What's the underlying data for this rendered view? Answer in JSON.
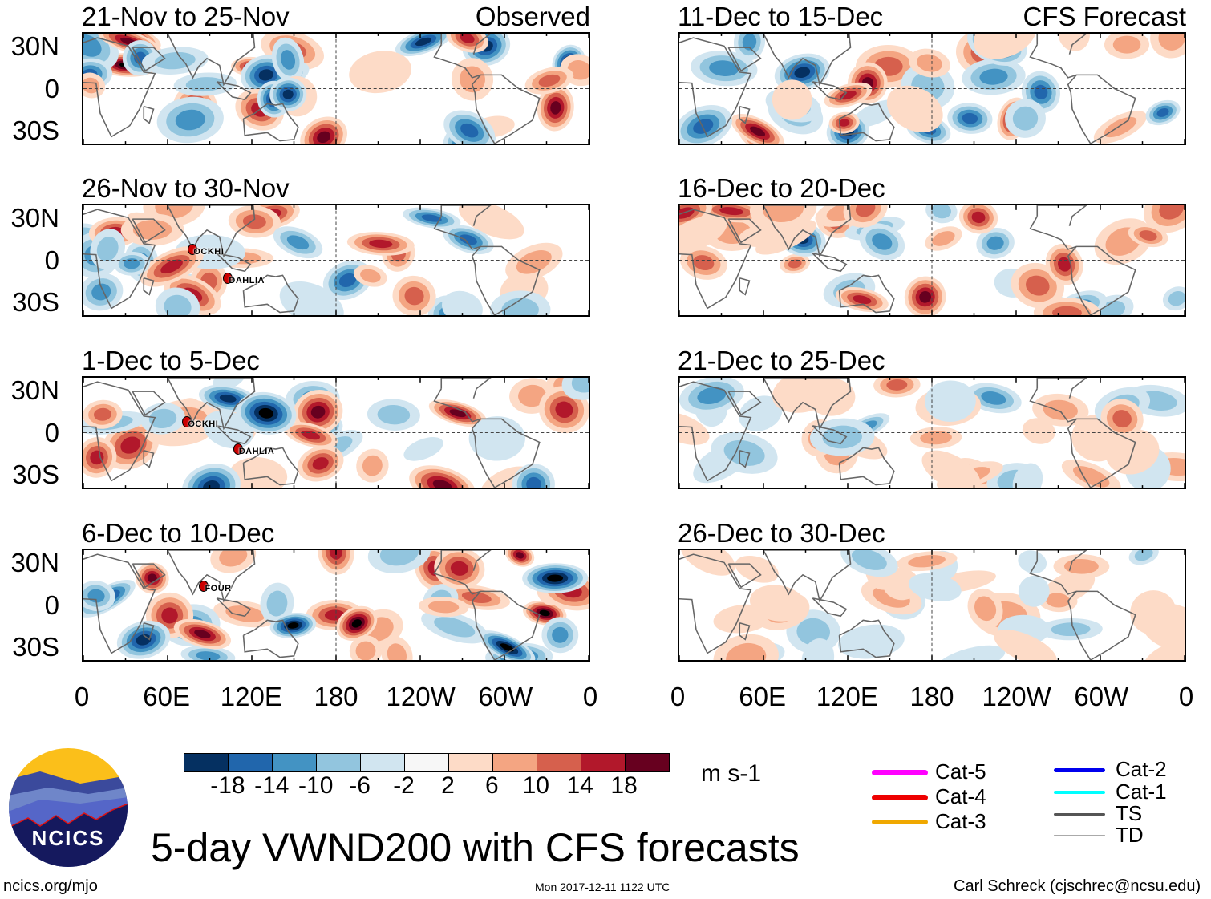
{
  "header": {
    "observed_label": "Observed",
    "forecast_label": "CFS Forecast"
  },
  "panels": [
    {
      "title": "21-Nov to 25-Nov",
      "column": "observed",
      "strength": 1.0,
      "seed": 11,
      "storms": []
    },
    {
      "title": "26-Nov to 30-Nov",
      "column": "observed",
      "strength": 0.8,
      "seed": 23,
      "storms": [
        {
          "name": "OCKHI",
          "lon": 78,
          "lat": 8
        },
        {
          "name": "DAHLIA",
          "lon": 103,
          "lat": -12
        }
      ]
    },
    {
      "title": "1-Dec to 5-Dec",
      "column": "observed",
      "strength": 1.0,
      "seed": 37,
      "storms": [
        {
          "name": "OCKHI",
          "lon": 74,
          "lat": 8
        },
        {
          "name": "DAHLIA",
          "lon": 110,
          "lat": -11
        }
      ]
    },
    {
      "title": "6-Dec to 10-Dec",
      "column": "observed",
      "strength": 1.1,
      "seed": 41,
      "storms": [
        {
          "name": "FOUR",
          "lon": 86,
          "lat": 14
        }
      ]
    },
    {
      "title": "11-Dec to 15-Dec",
      "column": "forecast",
      "strength": 1.0,
      "seed": 53,
      "storms": []
    },
    {
      "title": "16-Dec to 20-Dec",
      "column": "forecast",
      "strength": 0.85,
      "seed": 67,
      "storms": []
    },
    {
      "title": "21-Dec to 25-Dec",
      "column": "forecast",
      "strength": 0.5,
      "seed": 71,
      "storms": []
    },
    {
      "title": "26-Dec to 30-Dec",
      "column": "forecast",
      "strength": 0.4,
      "seed": 83,
      "storms": []
    }
  ],
  "axes": {
    "lat_ticks": [
      "30N",
      "0",
      "30S"
    ],
    "lon_ticks": [
      "0",
      "60E",
      "120E",
      "180",
      "120W",
      "60W",
      "0"
    ],
    "lat_range": [
      -40,
      40
    ],
    "lon_range": [
      0,
      360
    ]
  },
  "colorbar": {
    "colors": [
      "#053061",
      "#2166ac",
      "#4393c3",
      "#92c5de",
      "#d1e5f0",
      "#f7f7f7",
      "#fddbc7",
      "#f4a582",
      "#d6604d",
      "#b2182b",
      "#67001f"
    ],
    "labels": [
      "-18",
      "-14",
      "-10",
      "-6",
      "-2",
      "2",
      "6",
      "10",
      "14",
      "18"
    ],
    "units": "m s-1"
  },
  "legend": [
    {
      "label": "Cat-5",
      "color": "#ff00ff"
    },
    {
      "label": "Cat-4",
      "color": "#ee0000"
    },
    {
      "label": "Cat-3",
      "color": "#f0a800"
    },
    {
      "label": "Cat-2",
      "color": "#0000ee"
    },
    {
      "label": "Cat-1",
      "color": "#00ffff"
    },
    {
      "label": "TS",
      "color": "#555555"
    },
    {
      "label": "TD",
      "color": "#aaaaaa"
    }
  ],
  "title": "5-day VWND200 with CFS forecasts",
  "logo": {
    "text": "NCICS"
  },
  "footer": {
    "site": "ncics.org/mjo",
    "timestamp": "Mon 2017-12-11 1122 UTC",
    "credit": "Carl Schreck (cjschrec@ncsu.edu)"
  }
}
